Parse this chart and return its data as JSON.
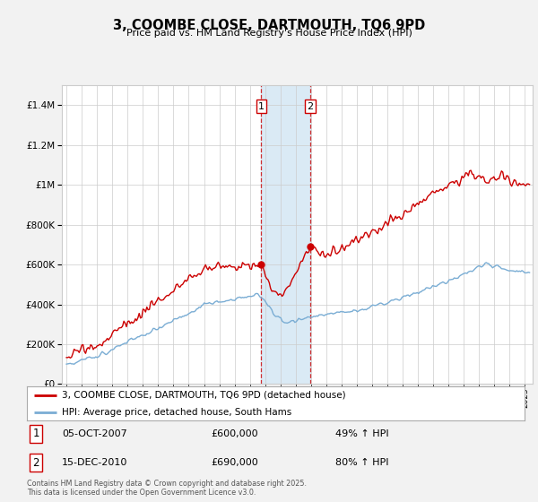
{
  "title": "3, COOMBE CLOSE, DARTMOUTH, TQ6 9PD",
  "subtitle": "Price paid vs. HM Land Registry's House Price Index (HPI)",
  "red_label": "3, COOMBE CLOSE, DARTMOUTH, TQ6 9PD (detached house)",
  "blue_label": "HPI: Average price, detached house, South Hams",
  "transaction1_date": "05-OCT-2007",
  "transaction1_price": "£600,000",
  "transaction1_hpi": "49% ↑ HPI",
  "transaction2_date": "15-DEC-2010",
  "transaction2_price": "£690,000",
  "transaction2_hpi": "80% ↑ HPI",
  "transaction1_year": 2007.75,
  "transaction1_value": 600000,
  "transaction2_year": 2010.95,
  "transaction2_value": 690000,
  "footnote": "Contains HM Land Registry data © Crown copyright and database right 2025.\nThis data is licensed under the Open Government Licence v3.0.",
  "bg_color": "#f2f2f2",
  "plot_bg_color": "#ffffff",
  "red_color": "#cc0000",
  "blue_color": "#7aadd4",
  "highlight_color": "#daeaf5",
  "ylim": [
    0,
    1500000
  ],
  "xlim_start": 1994.7,
  "xlim_end": 2025.5
}
